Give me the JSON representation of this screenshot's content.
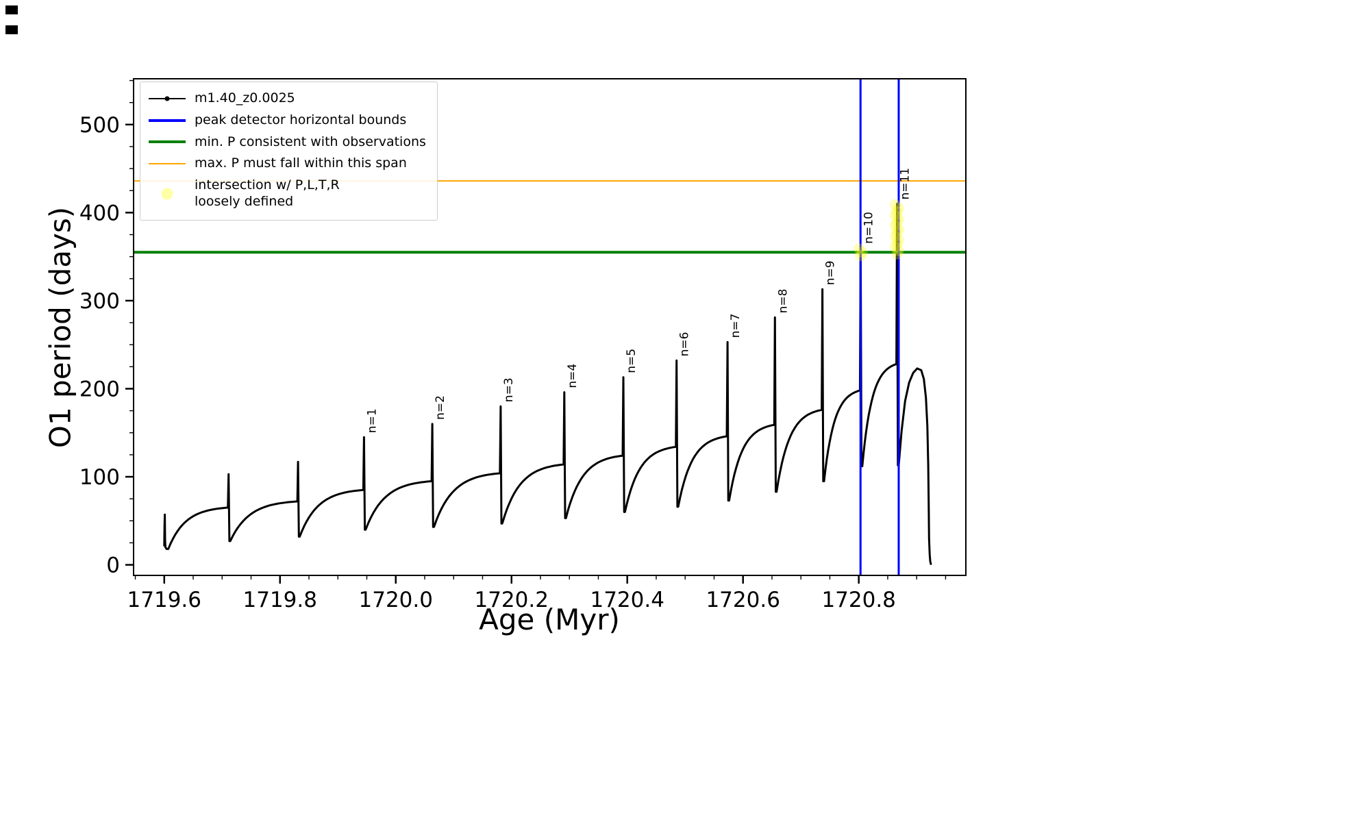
{
  "window": {
    "background": "#ffffff"
  },
  "legend": {
    "items": [
      {
        "label": "m1.40_z0.0025",
        "color": "#000000",
        "swatch": "line-with-marker"
      },
      {
        "label": "peak detector horizontal bounds",
        "color": "#0000ff",
        "swatch": "thick-line"
      },
      {
        "label": "min. P consistent with observations",
        "color": "#008000",
        "swatch": "thick-line"
      },
      {
        "label": "max. P must fall within this span",
        "color": "#ffa500",
        "swatch": "thin-line"
      },
      {
        "label": "intersection w/ P,L,T,R\nloosely defined",
        "color": "#ffff00",
        "swatch": "faint-dot"
      }
    ]
  },
  "chart_data": {
    "type": "line",
    "title": "",
    "xlabel": "Age (Myr)",
    "ylabel": "O1 period (days)",
    "xlim": [
      1719.547,
      1720.985
    ],
    "ylim": [
      -12,
      552
    ],
    "xticks": [
      1719.6,
      1719.8,
      1720.0,
      1720.2,
      1720.4,
      1720.6,
      1720.8
    ],
    "xtick_labels": [
      "1719.6",
      "1719.8",
      "1720.0",
      "1720.2",
      "1720.4",
      "1720.6",
      "1720.8"
    ],
    "yticks": [
      0,
      100,
      200,
      300,
      400,
      500
    ],
    "ytick_labels": [
      "0",
      "100",
      "200",
      "300",
      "400",
      "500"
    ],
    "x_minor_step": 0.05,
    "y_minor_step": 25,
    "grid": false,
    "legend_position": "upper-left",
    "series": [
      {
        "name": "m1.40_z0.0025",
        "color": "#000000",
        "marker": "point",
        "style": "line"
      }
    ],
    "lead_in": [
      [
        1719.6,
        22
      ],
      [
        1719.6005,
        45
      ],
      [
        1719.601,
        57
      ],
      [
        1719.6015,
        28
      ],
      [
        1719.602,
        20
      ],
      [
        1719.604,
        18
      ]
    ],
    "cycles": [
      {
        "x0": 1719.607,
        "x1": 1719.71,
        "y_low": 18,
        "y_plateau": 65,
        "y_peak": 103,
        "label": ""
      },
      {
        "x0": 1719.714,
        "x1": 1719.83,
        "y_low": 27,
        "y_plateau": 72,
        "y_peak": 117,
        "label": ""
      },
      {
        "x0": 1719.834,
        "x1": 1719.944,
        "y_low": 32,
        "y_plateau": 85,
        "y_peak": 145,
        "label": "n=1"
      },
      {
        "x0": 1719.948,
        "x1": 1720.062,
        "y_low": 40,
        "y_plateau": 95,
        "y_peak": 160,
        "label": "n=2"
      },
      {
        "x0": 1720.066,
        "x1": 1720.18,
        "y_low": 43,
        "y_plateau": 104,
        "y_peak": 180,
        "label": "n=3"
      },
      {
        "x0": 1720.184,
        "x1": 1720.29,
        "y_low": 47,
        "y_plateau": 114,
        "y_peak": 196,
        "label": "n=4"
      },
      {
        "x0": 1720.294,
        "x1": 1720.392,
        "y_low": 53,
        "y_plateau": 124,
        "y_peak": 213,
        "label": "n=5"
      },
      {
        "x0": 1720.396,
        "x1": 1720.484,
        "y_low": 60,
        "y_plateau": 134,
        "y_peak": 232,
        "label": "n=6"
      },
      {
        "x0": 1720.488,
        "x1": 1720.572,
        "y_low": 66,
        "y_plateau": 146,
        "y_peak": 253,
        "label": "n=7"
      },
      {
        "x0": 1720.576,
        "x1": 1720.654,
        "y_low": 73,
        "y_plateau": 159,
        "y_peak": 281,
        "label": "n=8"
      },
      {
        "x0": 1720.658,
        "x1": 1720.736,
        "y_low": 83,
        "y_plateau": 176,
        "y_peak": 313,
        "label": "n=9"
      },
      {
        "x0": 1720.74,
        "x1": 1720.802,
        "y_low": 95,
        "y_plateau": 198,
        "y_peak": 360,
        "label": "n=10"
      },
      {
        "x0": 1720.806,
        "x1": 1720.865,
        "y_low": 112,
        "y_plateau": 228,
        "y_peak": 410,
        "label": "n=11"
      }
    ],
    "final_segment": [
      [
        1720.869,
        113
      ],
      [
        1720.874,
        152
      ],
      [
        1720.88,
        186
      ],
      [
        1720.887,
        207
      ],
      [
        1720.894,
        218
      ],
      [
        1720.901,
        223
      ],
      [
        1720.908,
        221
      ],
      [
        1720.9125,
        211
      ],
      [
        1720.916,
        190
      ],
      [
        1720.9185,
        158
      ],
      [
        1720.92,
        112
      ],
      [
        1720.921,
        60
      ],
      [
        1720.9215,
        30
      ],
      [
        1720.9225,
        12
      ],
      [
        1720.9235,
        4
      ],
      [
        1720.9245,
        1
      ]
    ],
    "hlines": [
      {
        "y": 355,
        "color": "#008000",
        "width": 4,
        "label": "min. P consistent with observations"
      },
      {
        "y": 436,
        "color": "#ffa500",
        "width": 2,
        "label": "max. P must fall within this span"
      }
    ],
    "vlines": [
      {
        "x": 1720.803,
        "color": "#0000ff",
        "width": 3,
        "label": "peak detector horizontal bounds"
      },
      {
        "x": 1720.869,
        "color": "#0000ff",
        "width": 3,
        "label": "peak detector horizontal bounds"
      }
    ],
    "intersections": [
      {
        "x": 1720.803,
        "y_min": 351,
        "y_max": 361
      },
      {
        "x": 1720.866,
        "y_min": 353,
        "y_max": 409
      }
    ],
    "intersection_color": "#ffff00",
    "peak_annotation_color": "#000000",
    "spine_color": "#000000"
  }
}
